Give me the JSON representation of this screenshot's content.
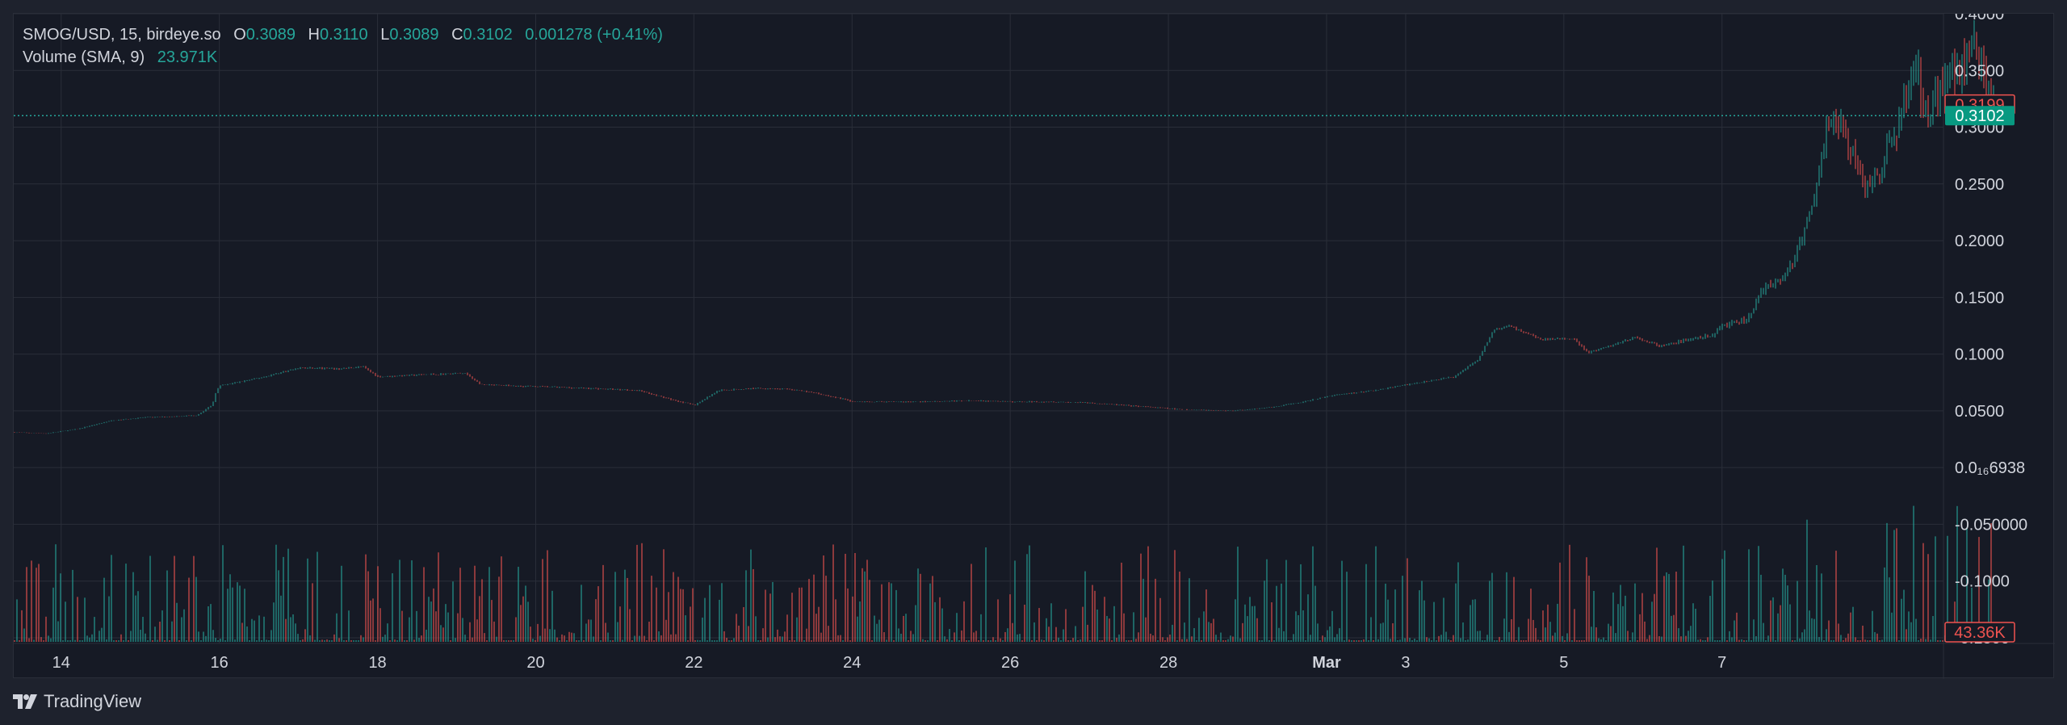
{
  "legend": {
    "symbol": "SMOG/USD, 15, birdeye.so",
    "open_label": "O",
    "open": "0.3089",
    "high_label": "H",
    "high": "0.3110",
    "low_label": "L",
    "low": "0.3089",
    "close_label": "C",
    "close": "0.3102",
    "change": "0.001278 (+0.41%)",
    "volume_label": "Volume (SMA, 9)",
    "volume_value": "23.971K"
  },
  "colors": {
    "up": "#26a69a",
    "down": "#ef5350",
    "grid": "#2a2e39",
    "text": "#d1d4dc",
    "bg": "#161a25"
  },
  "chart_data": {
    "type": "candlestick",
    "symbol": "SMOG/USD",
    "interval": "15",
    "price_axis": {
      "ticks": [
        0.4,
        0.35,
        0.3,
        0.25,
        0.2,
        0.15,
        0.1,
        0.05,
        6.938e-07,
        -0.05,
        -0.1,
        -0.15
      ],
      "tick_labels": [
        "0.4000",
        "0.3500",
        "0.3000",
        "0.2500",
        "0.2000",
        "0.1500",
        "0.1000",
        "0.0500",
        "0.0₁₆6938",
        "-0.050000",
        "-0.1000",
        "-0.1500"
      ],
      "range": [
        -0.155,
        0.4
      ]
    },
    "time_axis": {
      "labels": [
        "14",
        "16",
        "18",
        "20",
        "22",
        "24",
        "26",
        "28",
        "Mar",
        "3",
        "5",
        "7"
      ],
      "label_days": [
        0,
        2,
        4,
        6,
        8,
        10,
        12,
        14,
        16,
        17,
        19,
        21
      ],
      "range_days": [
        -0.6,
        23.8
      ]
    },
    "price_path": [
      [
        -0.6,
        0.031
      ],
      [
        -0.2,
        0.03
      ],
      [
        0.2,
        0.034
      ],
      [
        0.6,
        0.041
      ],
      [
        1.0,
        0.044
      ],
      [
        1.4,
        0.045
      ],
      [
        1.7,
        0.046
      ],
      [
        1.9,
        0.055
      ],
      [
        1.95,
        0.068
      ],
      [
        2.0,
        0.072
      ],
      [
        2.5,
        0.079
      ],
      [
        3.0,
        0.088
      ],
      [
        3.5,
        0.087
      ],
      [
        3.8,
        0.089
      ],
      [
        4.0,
        0.08
      ],
      [
        4.6,
        0.082
      ],
      [
        5.1,
        0.083
      ],
      [
        5.3,
        0.073
      ],
      [
        5.7,
        0.072
      ],
      [
        6.2,
        0.071
      ],
      [
        6.6,
        0.07
      ],
      [
        7.3,
        0.068
      ],
      [
        7.7,
        0.06
      ],
      [
        8.0,
        0.055
      ],
      [
        8.3,
        0.068
      ],
      [
        8.8,
        0.07
      ],
      [
        9.2,
        0.069
      ],
      [
        9.5,
        0.066
      ],
      [
        9.9,
        0.06
      ],
      [
        10.0,
        0.058
      ],
      [
        10.8,
        0.058
      ],
      [
        11.5,
        0.059
      ],
      [
        12.0,
        0.058
      ],
      [
        12.5,
        0.058
      ],
      [
        13.0,
        0.057
      ],
      [
        13.6,
        0.054
      ],
      [
        14.2,
        0.051
      ],
      [
        14.8,
        0.05
      ],
      [
        15.3,
        0.053
      ],
      [
        15.7,
        0.058
      ],
      [
        16.1,
        0.064
      ],
      [
        16.6,
        0.068
      ],
      [
        17.0,
        0.073
      ],
      [
        17.6,
        0.08
      ],
      [
        17.9,
        0.095
      ],
      [
        18.1,
        0.121
      ],
      [
        18.3,
        0.125
      ],
      [
        18.7,
        0.113
      ],
      [
        19.1,
        0.114
      ],
      [
        19.3,
        0.101
      ],
      [
        19.6,
        0.108
      ],
      [
        19.9,
        0.115
      ],
      [
        20.2,
        0.107
      ],
      [
        20.6,
        0.113
      ],
      [
        20.9,
        0.118
      ],
      [
        21.0,
        0.125
      ],
      [
        21.3,
        0.13
      ],
      [
        21.5,
        0.155
      ],
      [
        21.8,
        0.17
      ],
      [
        22.0,
        0.2
      ],
      [
        22.2,
        0.25
      ],
      [
        22.35,
        0.31
      ],
      [
        22.5,
        0.3
      ],
      [
        22.65,
        0.275
      ],
      [
        22.8,
        0.245
      ],
      [
        23.0,
        0.265
      ],
      [
        23.2,
        0.3
      ],
      [
        23.35,
        0.335
      ],
      [
        23.45,
        0.355
      ],
      [
        23.55,
        0.31
      ],
      [
        23.7,
        0.33
      ],
      [
        23.85,
        0.355
      ],
      [
        24.0,
        0.348
      ],
      [
        24.2,
        0.372
      ],
      [
        24.3,
        0.355
      ],
      [
        24.4,
        0.328
      ],
      [
        24.45,
        0.31
      ]
    ],
    "last_price": 0.3102,
    "last_price_label": "0.3102",
    "high_marker": 0.3199,
    "high_marker_label": "0.3199",
    "volume": {
      "sma_period": 9,
      "sma_value": "23.971K",
      "last_label": "43.36K",
      "max": 50000
    }
  },
  "branding": {
    "logo_text": "TradingView"
  }
}
